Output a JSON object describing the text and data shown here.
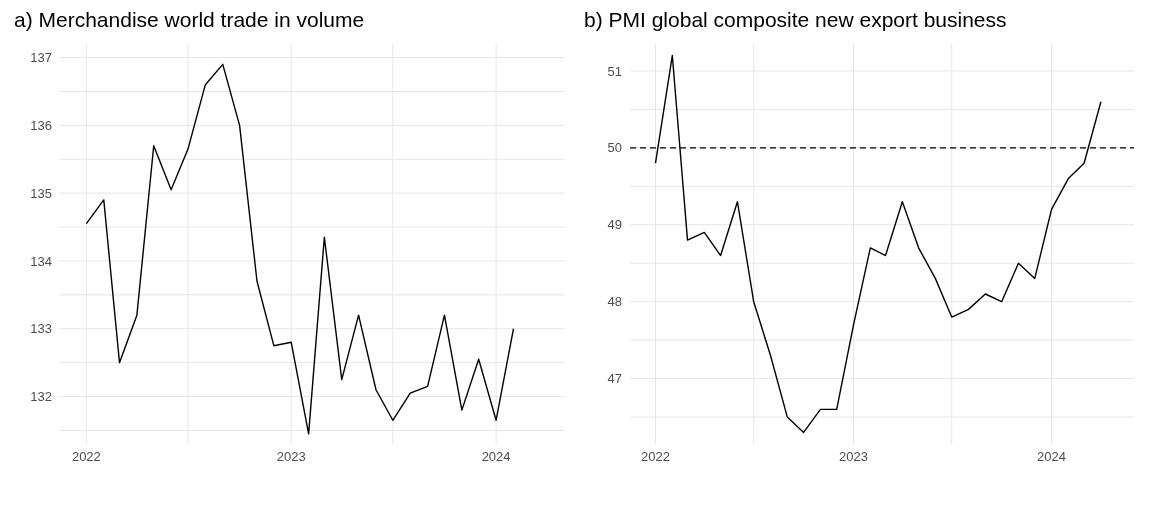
{
  "chart_data": [
    {
      "type": "line",
      "title": "a) Merchandise world trade in volume",
      "x": [
        "2022-01",
        "2022-02",
        "2022-03",
        "2022-04",
        "2022-05",
        "2022-06",
        "2022-07",
        "2022-08",
        "2022-09",
        "2022-10",
        "2022-11",
        "2022-12",
        "2023-01",
        "2023-02",
        "2023-03",
        "2023-04",
        "2023-05",
        "2023-06",
        "2023-07",
        "2023-08",
        "2023-09",
        "2023-10",
        "2023-11",
        "2023-12",
        "2024-01",
        "2024-02"
      ],
      "series": [
        {
          "color": "#000000",
          "values": [
            134.55,
            134.9,
            132.5,
            133.2,
            135.7,
            135.05,
            135.65,
            136.6,
            136.9,
            136.0,
            133.7,
            132.75,
            132.8,
            131.45,
            134.35,
            132.25,
            133.2,
            132.1,
            131.65,
            132.05,
            132.15,
            133.2,
            131.8,
            132.55,
            131.65,
            133.0
          ]
        }
      ],
      "xlim": [
        "2021-11-15",
        "2024-05-01"
      ],
      "xticks": [
        {
          "value": "2022-01",
          "label": "2022"
        },
        {
          "value": "2022-07",
          "label": null
        },
        {
          "value": "2023-01",
          "label": "2023"
        },
        {
          "value": "2023-07",
          "label": null
        },
        {
          "value": "2024-01",
          "label": "2024"
        }
      ],
      "ylim": [
        131.3,
        137.2
      ],
      "yticks": [
        {
          "value": 131.5,
          "label": null
        },
        132,
        {
          "value": 132.5,
          "label": null
        },
        133,
        {
          "value": 133.5,
          "label": null
        },
        134,
        {
          "value": 134.5,
          "label": null
        },
        135,
        {
          "value": 135.5,
          "label": null
        },
        136,
        {
          "value": 136.5,
          "label": null
        },
        137
      ],
      "grid": true,
      "legend": false,
      "marker": "none",
      "line_style": "solid"
    },
    {
      "type": "line",
      "title": "b) PMI global composite new export business",
      "x": [
        "2022-01",
        "2022-02",
        "2022-03",
        "2022-04",
        "2022-05",
        "2022-06",
        "2022-07",
        "2022-08",
        "2022-09",
        "2022-10",
        "2022-11",
        "2022-12",
        "2023-01",
        "2023-02",
        "2023-03",
        "2023-04",
        "2023-05",
        "2023-06",
        "2023-07",
        "2023-08",
        "2023-09",
        "2023-10",
        "2023-11",
        "2023-12",
        "2024-01",
        "2024-02",
        "2024-03",
        "2024-04"
      ],
      "series": [
        {
          "color": "#000000",
          "values": [
            49.8,
            51.2,
            48.8,
            48.9,
            48.6,
            49.3,
            48.0,
            47.3,
            46.5,
            46.3,
            46.6,
            46.6,
            47.7,
            48.7,
            48.6,
            49.3,
            48.7,
            48.3,
            47.8,
            47.9,
            48.1,
            48.0,
            48.5,
            48.3,
            49.2,
            49.6,
            49.8,
            50.6
          ]
        }
      ],
      "xlim": [
        "2021-11-15",
        "2024-06-01"
      ],
      "xticks": [
        {
          "value": "2022-01",
          "label": "2022"
        },
        {
          "value": "2022-07",
          "label": null
        },
        {
          "value": "2023-01",
          "label": "2023"
        },
        {
          "value": "2023-07",
          "label": null
        },
        {
          "value": "2024-01",
          "label": "2024"
        }
      ],
      "ylim": [
        46.15,
        51.35
      ],
      "yticks": [
        {
          "value": 46.5,
          "label": null
        },
        47,
        {
          "value": 47.5,
          "label": null
        },
        48,
        {
          "value": 48.5,
          "label": null
        },
        49,
        {
          "value": 49.5,
          "label": null
        },
        50,
        {
          "value": 50.5,
          "label": null
        },
        51
      ],
      "ref_lines": [
        {
          "axis": "y",
          "value": 50,
          "color": "#000000",
          "line_style": "dashed"
        }
      ],
      "grid": true,
      "legend": false,
      "marker": "none",
      "line_style": "solid"
    }
  ]
}
